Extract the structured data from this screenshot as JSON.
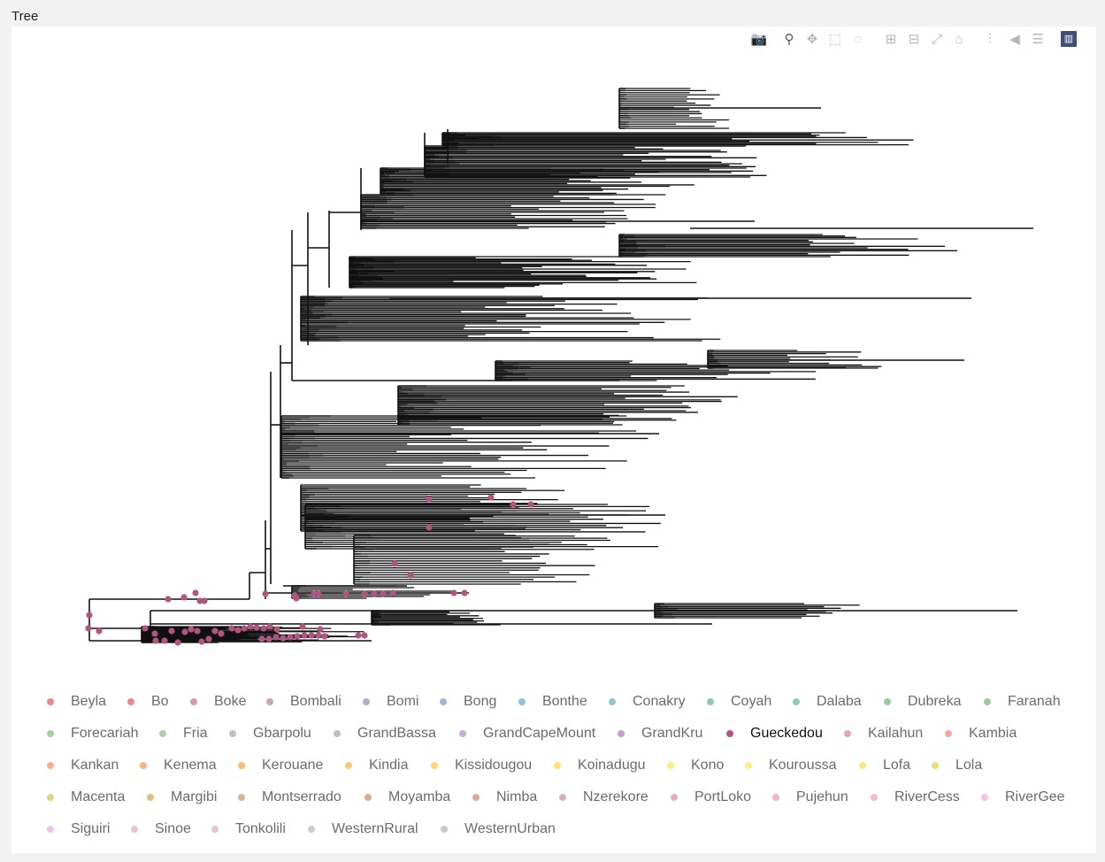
{
  "title": "Tree",
  "toolbar": [
    {
      "name": "camera-icon",
      "glyph": "📷"
    },
    {
      "name": "zoom-icon",
      "glyph": "⚲",
      "active": true
    },
    {
      "name": "pan-icon",
      "glyph": "✥"
    },
    {
      "name": "box-select-icon",
      "glyph": "⬚"
    },
    {
      "name": "lasso-select-icon",
      "glyph": "◌"
    },
    {
      "name": "zoom-in-icon",
      "glyph": "⊞"
    },
    {
      "name": "zoom-out-icon",
      "glyph": "⊟"
    },
    {
      "name": "autoscale-icon",
      "glyph": "⤢"
    },
    {
      "name": "reset-axes-icon",
      "glyph": "⌂"
    },
    {
      "name": "spike-lines-icon",
      "glyph": "⫶"
    },
    {
      "name": "hover-closest-icon",
      "glyph": "◀"
    },
    {
      "name": "hover-compare-icon",
      "glyph": "☰"
    },
    {
      "name": "plotly-logo-icon",
      "glyph": "▥",
      "plotly": true
    }
  ],
  "chart_data": {
    "type": "scatter",
    "title": "Tree",
    "xlabel": "",
    "ylabel": "",
    "grid": false,
    "legend_position": "bottom",
    "highlighted_series": "Gueckedou",
    "branch_color": "#111111",
    "tip_color": "#b0557f",
    "series_markers": [
      [
        101,
        695
      ],
      [
        100,
        710
      ],
      [
        112,
        713
      ],
      [
        164,
        710
      ],
      [
        175,
        716
      ],
      [
        176,
        724
      ],
      [
        186,
        724
      ],
      [
        194,
        713
      ],
      [
        201,
        726
      ],
      [
        209,
        714
      ],
      [
        216,
        711
      ],
      [
        223,
        713
      ],
      [
        228,
        725
      ],
      [
        236,
        722
      ],
      [
        243,
        713
      ],
      [
        250,
        716
      ],
      [
        262,
        710
      ],
      [
        269,
        712
      ],
      [
        276,
        710
      ],
      [
        283,
        708
      ],
      [
        290,
        709
      ],
      [
        298,
        710
      ],
      [
        305,
        708
      ],
      [
        313,
        711
      ],
      [
        296,
        722
      ],
      [
        304,
        722
      ],
      [
        312,
        720
      ],
      [
        320,
        721
      ],
      [
        328,
        720
      ],
      [
        336,
        719
      ],
      [
        344,
        718
      ],
      [
        352,
        718
      ],
      [
        360,
        718
      ],
      [
        367,
        719
      ],
      [
        342,
        708
      ],
      [
        362,
        711
      ],
      [
        405,
        718
      ],
      [
        412,
        718
      ],
      [
        190,
        677
      ],
      [
        208,
        675
      ],
      [
        221,
        670
      ],
      [
        226,
        679
      ],
      [
        231,
        679
      ],
      [
        300,
        671
      ],
      [
        333,
        673
      ],
      [
        335,
        676
      ],
      [
        355,
        671
      ],
      [
        360,
        671
      ],
      [
        391,
        671
      ],
      [
        412,
        671
      ],
      [
        423,
        671
      ],
      [
        433,
        671
      ],
      [
        444,
        670
      ],
      [
        513,
        670
      ],
      [
        525,
        670
      ],
      [
        485,
        564
      ],
      [
        555,
        562
      ],
      [
        580,
        570
      ],
      [
        600,
        570
      ],
      [
        485,
        596
      ],
      [
        446,
        637
      ],
      [
        464,
        650
      ]
    ],
    "legend": [
      {
        "label": "Beyla",
        "color": "#e8898e"
      },
      {
        "label": "Bo",
        "color": "#e68a8f"
      },
      {
        "label": "Boke",
        "color": "#d99aa4"
      },
      {
        "label": "Bombali",
        "color": "#c5a3bb"
      },
      {
        "label": "Bomi",
        "color": "#b3adc9"
      },
      {
        "label": "Bong",
        "color": "#9fb7d6"
      },
      {
        "label": "Bonthe",
        "color": "#97bfd6"
      },
      {
        "label": "Conakry",
        "color": "#93c6cc"
      },
      {
        "label": "Coyah",
        "color": "#91c8bd"
      },
      {
        "label": "Dalaba",
        "color": "#93c9b1"
      },
      {
        "label": "Dubreka",
        "color": "#98cba3"
      },
      {
        "label": "Faranah",
        "color": "#9fcc9a"
      },
      {
        "label": "Forecariah",
        "color": "#a7ce9e"
      },
      {
        "label": "Fria",
        "color": "#b3cfa8"
      },
      {
        "label": "Gbarpolu",
        "color": "#bec1c0"
      },
      {
        "label": "GrandBassa",
        "color": "#bfbfbf"
      },
      {
        "label": "GrandCapeMount",
        "color": "#c9b0d4"
      },
      {
        "label": "GrandKru",
        "color": "#c99bcf"
      },
      {
        "label": "Gueckedou",
        "color": "#b0557f"
      },
      {
        "label": "Kailahun",
        "color": "#e3a9ae"
      },
      {
        "label": "Kambia",
        "color": "#f0a99a"
      },
      {
        "label": "Kankan",
        "color": "#f7b08c"
      },
      {
        "label": "Kenema",
        "color": "#fbb27f"
      },
      {
        "label": "Kerouane",
        "color": "#fcbb7c"
      },
      {
        "label": "Kindia",
        "color": "#fdc87a"
      },
      {
        "label": "Kissidougou",
        "color": "#fdd57b"
      },
      {
        "label": "Koinadugu",
        "color": "#fde07d"
      },
      {
        "label": "Kono",
        "color": "#fdea80"
      },
      {
        "label": "Kouroussa",
        "color": "#fbee86"
      },
      {
        "label": "Lofa",
        "color": "#f6e784"
      },
      {
        "label": "Lola",
        "color": "#ecdc80"
      },
      {
        "label": "Macenta",
        "color": "#e4d08c"
      },
      {
        "label": "Margibi",
        "color": "#dcc27c"
      },
      {
        "label": "Montserrado",
        "color": "#d7b593"
      },
      {
        "label": "Moyamba",
        "color": "#d6ab97"
      },
      {
        "label": "Nimba",
        "color": "#d9aaa8"
      },
      {
        "label": "Nzerekore",
        "color": "#dcb1b4"
      },
      {
        "label": "PortLoko",
        "color": "#e2b2bb"
      },
      {
        "label": "Pujehun",
        "color": "#f1b4cd"
      },
      {
        "label": "RiverCess",
        "color": "#f3bcd6"
      },
      {
        "label": "RiverGee",
        "color": "#f4c3df"
      },
      {
        "label": "Siguiri",
        "color": "#f0c6de"
      },
      {
        "label": "Sinoe",
        "color": "#e8c3d8"
      },
      {
        "label": "Tonkolili",
        "color": "#dcc7d6"
      },
      {
        "label": "WesternRural",
        "color": "#d5c8d2"
      },
      {
        "label": "WesternUrban",
        "color": "#c8c8c8"
      }
    ]
  }
}
